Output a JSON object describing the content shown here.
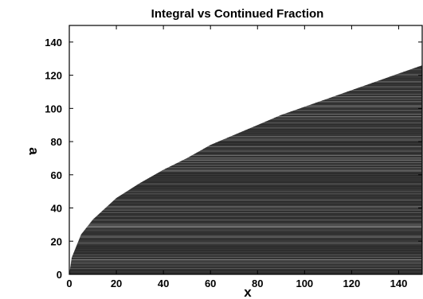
{
  "chart_data": {
    "type": "area",
    "title": "Integral vs Continued Fraction",
    "xlabel": "x",
    "ylabel": "a",
    "xlim": [
      0,
      150
    ],
    "ylim": [
      0,
      150
    ],
    "x_ticks": [
      "0",
      "20",
      "40",
      "60",
      "80",
      "100",
      "120",
      "140"
    ],
    "y_ticks": [
      "0",
      "20",
      "40",
      "60",
      "80",
      "100",
      "120",
      "140"
    ],
    "grid": false,
    "series": [
      {
        "x": [
          0,
          1,
          5,
          10,
          20,
          30,
          40,
          50,
          60,
          70,
          80,
          90,
          100,
          110,
          120,
          130,
          140,
          150
        ],
        "y": [
          0,
          10,
          24,
          33,
          46,
          55,
          63,
          70,
          78,
          84,
          90,
          96,
          101,
          106,
          111,
          116,
          121,
          126
        ]
      }
    ],
    "colors": {
      "fill": "#3a3a3a",
      "stripe_light": "#9a9a9a",
      "stripe_dark": "#111111",
      "axes": "#000000"
    }
  }
}
